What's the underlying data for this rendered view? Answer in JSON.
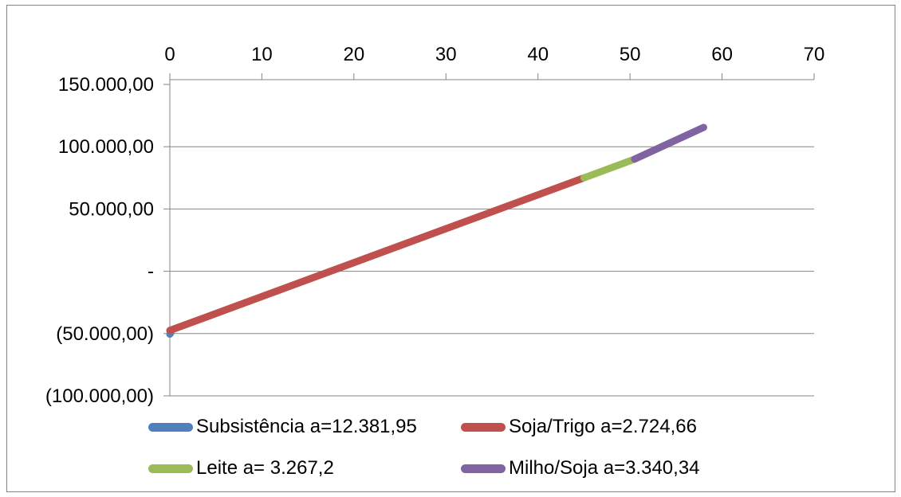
{
  "chart_data": {
    "type": "line",
    "title": "",
    "xlabel": "",
    "ylabel": "",
    "xlim": [
      0,
      70
    ],
    "ylim": [
      -100000,
      150000
    ],
    "x_ticks": [
      0,
      10,
      20,
      30,
      40,
      50,
      60,
      70
    ],
    "x_tick_labels": [
      "0",
      "10",
      "20",
      "30",
      "40",
      "50",
      "60",
      "70"
    ],
    "x_axis_position": "top",
    "y_ticks": [
      150000,
      100000,
      50000,
      0,
      -50000,
      -100000
    ],
    "y_tick_labels": [
      "150.000,00",
      "100.000,00",
      "50.000,00",
      "-",
      "(50.000,00)",
      "(100.000,00)"
    ],
    "grid": "horizontal",
    "legend_position": "bottom",
    "series": [
      {
        "name": "Subsistência a=12.381,95",
        "color": "#4F81BD",
        "x": [
          0,
          0.1
        ],
        "y": [
          -50500,
          -49500
        ]
      },
      {
        "name": "Soja/Trigo a=2.724,66",
        "color": "#C0504D",
        "x": [
          0,
          45
        ],
        "y": [
          -47500,
          75000
        ]
      },
      {
        "name": "Leite a= 3.267,2",
        "color": "#9BBB59",
        "x": [
          45,
          50.5
        ],
        "y": [
          75000,
          90000
        ]
      },
      {
        "name": "Milho/Soja a=3.340,34",
        "color": "#8064A2",
        "x": [
          50.5,
          58
        ],
        "y": [
          90000,
          115500
        ]
      }
    ]
  }
}
